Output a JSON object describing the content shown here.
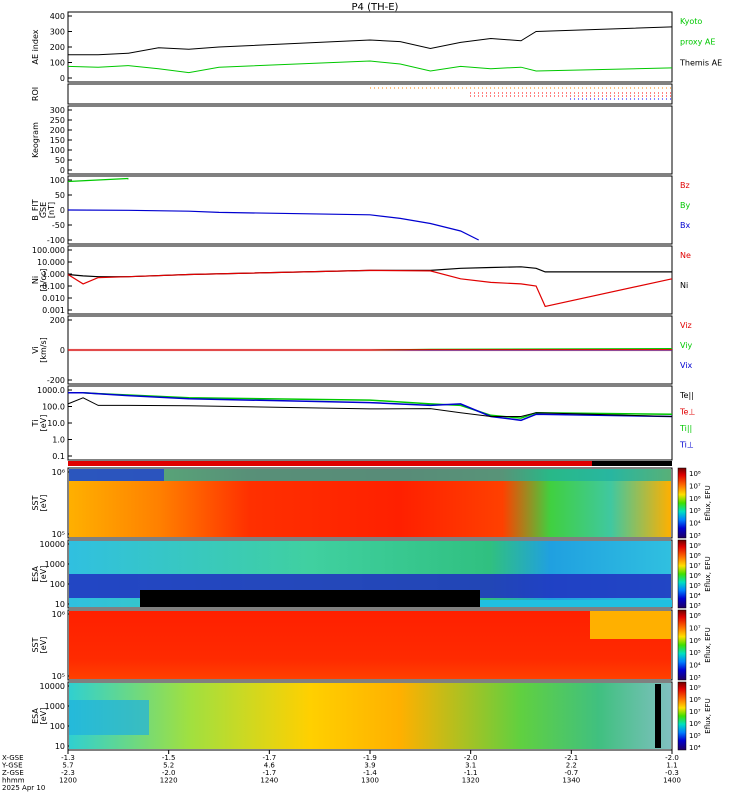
{
  "title": "P4  (TH-E)",
  "colors": {
    "green": "#00c800",
    "red": "#e00000",
    "blue": "#0000d0",
    "black": "#000000"
  },
  "panels": [
    {
      "key": "ae",
      "ylabel": [
        "AE index"
      ],
      "yticks": [
        "400",
        "300",
        "200",
        "100",
        "0"
      ],
      "legend": [
        {
          "text": "Kyoto",
          "color": "green"
        },
        {
          "text": "proxy AE",
          "color": "green"
        },
        {
          "text": "Themis AE",
          "color": "black"
        }
      ]
    },
    {
      "key": "roi",
      "ylabel": [
        "ROI"
      ],
      "yticks": [],
      "legend": []
    },
    {
      "key": "keogram",
      "ylabel": [
        "Keogram"
      ],
      "yticks": [
        "300",
        "250",
        "200",
        "150",
        "100",
        "50",
        "0"
      ],
      "legend": []
    },
    {
      "key": "bfit",
      "ylabel": [
        "B_FIT",
        "GSE",
        "[nT]"
      ],
      "yticks": [
        "100",
        "50",
        "0",
        "-50",
        "-100"
      ],
      "legend": [
        {
          "text": "Bz",
          "color": "red"
        },
        {
          "text": "By",
          "color": "green"
        },
        {
          "text": "Bx",
          "color": "blue"
        }
      ]
    },
    {
      "key": "ni",
      "ylabel": [
        "Ni",
        "[1/cc]"
      ],
      "yticks": [
        "100.000",
        "10.000",
        "1.000",
        "0.100",
        "0.010",
        "0.001"
      ],
      "legend": [
        {
          "text": "Ne",
          "color": "red"
        },
        {
          "text": "Ni",
          "color": "black"
        }
      ]
    },
    {
      "key": "vi",
      "ylabel": [
        "Vi",
        "[km/s]"
      ],
      "yticks": [
        "200",
        "0",
        "-200"
      ],
      "legend": [
        {
          "text": "Viz",
          "color": "red"
        },
        {
          "text": "Viy",
          "color": "green"
        },
        {
          "text": "Vix",
          "color": "blue"
        }
      ]
    },
    {
      "key": "ti",
      "ylabel": [
        "Ti",
        "[eV]"
      ],
      "yticks": [
        "1000.0",
        "100.0",
        "10.0",
        "1.0",
        "0.1"
      ],
      "legend": [
        {
          "text": "Te||",
          "color": "black"
        },
        {
          "text": "Te⊥",
          "color": "red"
        },
        {
          "text": "Ti||",
          "color": "green"
        },
        {
          "text": "Ti⊥",
          "color": "blue"
        }
      ]
    },
    {
      "key": "sst_e",
      "ylabel": [
        "SST",
        "[eV]"
      ],
      "yticks": [
        "10⁶",
        "10⁵"
      ],
      "legend": []
    },
    {
      "key": "esa_e",
      "ylabel": [
        "ESA",
        "[eV]"
      ],
      "yticks": [
        "10000",
        "1000",
        "100",
        "10"
      ],
      "legend": []
    },
    {
      "key": "sst_i",
      "ylabel": [
        "SST",
        "[eV]"
      ],
      "yticks": [
        "10⁶",
        "10⁵"
      ],
      "legend": []
    },
    {
      "key": "esa_i",
      "ylabel": [
        "ESA",
        "[eV]"
      ],
      "yticks": [
        "10000",
        "1000",
        "100",
        "10"
      ],
      "legend": []
    }
  ],
  "colorbars": [
    {
      "label": "Eflux, EFU",
      "ticks": [
        "10⁸",
        "10⁷",
        "10⁶",
        "10⁵",
        "10⁴",
        "10³"
      ]
    },
    {
      "label": "Eflux, EFU",
      "ticks": [
        "10⁹",
        "10⁸",
        "10⁷",
        "10⁶",
        "10⁵",
        "10⁴",
        "10³"
      ]
    },
    {
      "label": "Eflux, EFU",
      "ticks": [
        "10⁸",
        "10⁷",
        "10⁶",
        "10⁵",
        "10⁴",
        "10³"
      ]
    },
    {
      "label": "Eflux, EFU",
      "ticks": [
        "10⁹",
        "10⁸",
        "10⁷",
        "10⁶",
        "10⁵",
        "10⁴"
      ]
    }
  ],
  "xaxis": {
    "row_labels": [
      "X-GSE",
      "Y-GSE",
      "Z-GSE",
      "hhmm",
      "2025 Apr 10"
    ],
    "ticks": [
      {
        "x": "-1.3",
        "y": "5.7",
        "z": "-2.3",
        "t": "1200"
      },
      {
        "x": "-1.5",
        "y": "5.2",
        "z": "-2.0",
        "t": "1220"
      },
      {
        "x": "-1.7",
        "y": "4.6",
        "z": "-1.7",
        "t": "1240"
      },
      {
        "x": "-1.9",
        "y": "3.9",
        "z": "-1.4",
        "t": "1300"
      },
      {
        "x": "-2.0",
        "y": "3.1",
        "z": "-1.1",
        "t": "1320"
      },
      {
        "x": "-2.1",
        "y": "2.2",
        "z": "-0.7",
        "t": "1340"
      },
      {
        "x": "-2.0",
        "y": "1.1",
        "z": "-0.3",
        "t": "1400"
      }
    ]
  },
  "chart_data": [
    {
      "type": "line",
      "panel": "AE index",
      "x_unit": "hhmm",
      "x": [
        1200,
        1210,
        1220,
        1230,
        1240,
        1250,
        1300,
        1310,
        1320,
        1330,
        1340,
        1350,
        1355,
        1400
      ],
      "series": [
        {
          "name": "Themis AE",
          "values": [
            150,
            150,
            160,
            195,
            185,
            200,
            245,
            235,
            190,
            230,
            255,
            240,
            300,
            330
          ]
        },
        {
          "name": "Kyoto proxy AE",
          "values": [
            75,
            70,
            80,
            60,
            35,
            70,
            110,
            90,
            45,
            75,
            60,
            70,
            45,
            65
          ]
        }
      ],
      "ylim": [
        0,
        400
      ]
    },
    {
      "type": "line",
      "panel": "B_FIT GSE [nT]",
      "x": [
        1200,
        1220,
        1240,
        1250,
        1300,
        1310,
        1320,
        1330,
        1336
      ],
      "series": [
        {
          "name": "Bx",
          "values": [
            0,
            -1,
            -4,
            -8,
            -16,
            -28,
            -45,
            -70,
            -100
          ]
        },
        {
          "name": "By",
          "values": [
            95,
            105,
            null,
            null,
            null,
            null,
            null,
            null,
            null
          ]
        }
      ],
      "ylim": [
        -100,
        100
      ]
    },
    {
      "type": "line",
      "panel": "Ni [1/cc]",
      "scale": "log",
      "x": [
        1200,
        1205,
        1210,
        1220,
        1240,
        1300,
        1320,
        1330,
        1340,
        1350,
        1355,
        1358,
        1400
      ],
      "series": [
        {
          "name": "Ne",
          "values": [
            0.9,
            0.15,
            0.5,
            0.6,
            0.9,
            2.0,
            1.8,
            0.4,
            0.2,
            0.15,
            0.1,
            0.002,
            0.4
          ]
        },
        {
          "name": "Ni",
          "values": [
            0.9,
            0.7,
            0.6,
            0.6,
            0.9,
            2.0,
            2.0,
            3.0,
            3.5,
            4.0,
            3.0,
            1.5,
            1.5
          ]
        }
      ],
      "ylim": [
        0.001,
        100
      ]
    },
    {
      "type": "line",
      "panel": "Vi [km/s]",
      "x": [
        1200,
        1300,
        1320,
        1400
      ],
      "series": [
        {
          "name": "Viz",
          "values": [
            0,
            0,
            5,
            5
          ]
        },
        {
          "name": "Viy",
          "values": [
            0,
            0,
            10,
            20
          ]
        },
        {
          "name": "Vix",
          "values": [
            0,
            0,
            0,
            0
          ]
        }
      ],
      "ylim": [
        -400,
        400
      ]
    },
    {
      "type": "line",
      "panel": "Ti [eV]",
      "scale": "log",
      "x": [
        1200,
        1205,
        1210,
        1220,
        1240,
        1300,
        1320,
        1330,
        1340,
        1350,
        1355,
        1400
      ],
      "series": [
        {
          "name": "Te||",
          "values": [
            400,
            1200,
            300,
            300,
            280,
            160,
            170,
            80,
            40,
            40,
            80,
            40
          ]
        },
        {
          "name": "Ti||",
          "values": [
            3000,
            3000,
            2600,
            2000,
            1200,
            800,
            400,
            300,
            50,
            30,
            80,
            60
          ]
        },
        {
          "name": "Ti⊥",
          "values": [
            3000,
            3000,
            2500,
            1800,
            1000,
            500,
            300,
            400,
            40,
            20,
            60,
            40
          ]
        }
      ],
      "ylim": [
        0.03,
        5000
      ]
    }
  ]
}
